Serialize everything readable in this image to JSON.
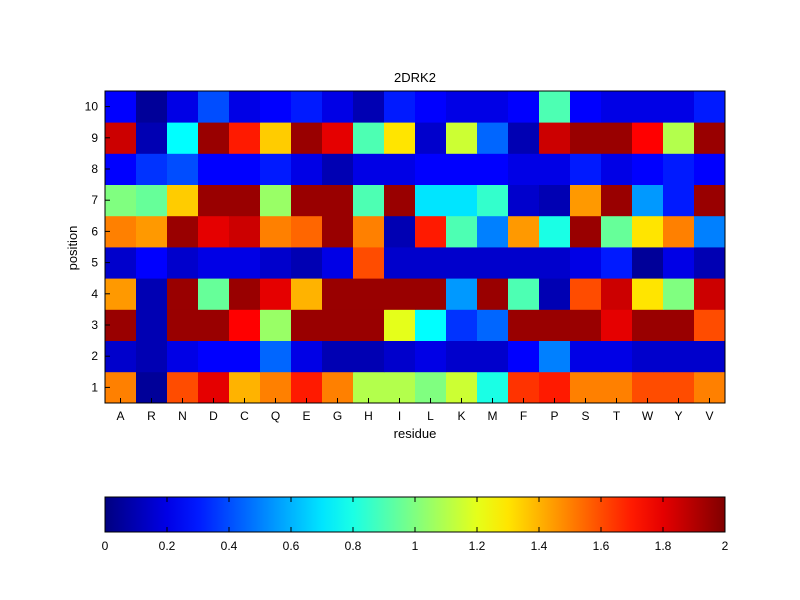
{
  "chart_data": {
    "type": "heatmap",
    "title": "2DRK2",
    "xlabel": "residue",
    "ylabel": "position",
    "x_categories": [
      "A",
      "R",
      "N",
      "D",
      "C",
      "Q",
      "E",
      "G",
      "H",
      "I",
      "L",
      "K",
      "M",
      "F",
      "P",
      "S",
      "T",
      "W",
      "Y",
      "V"
    ],
    "y_categories": [
      "1",
      "2",
      "3",
      "4",
      "5",
      "6",
      "7",
      "8",
      "9",
      "10"
    ],
    "values": [
      [
        1.5,
        0.05,
        1.6,
        1.8,
        1.4,
        1.5,
        1.7,
        1.5,
        1.1,
        1.1,
        1.0,
        1.15,
        0.8,
        1.65,
        1.7,
        1.5,
        1.5,
        1.6,
        1.6,
        1.5
      ],
      [
        0.15,
        0.1,
        0.2,
        0.25,
        0.25,
        0.45,
        0.2,
        0.1,
        0.1,
        0.15,
        0.2,
        0.15,
        0.15,
        0.25,
        0.5,
        0.2,
        0.2,
        0.15,
        0.15,
        0.15
      ],
      [
        1.95,
        0.1,
        1.95,
        1.95,
        1.75,
        1.05,
        1.95,
        1.95,
        1.95,
        1.2,
        0.75,
        0.35,
        0.45,
        1.95,
        1.95,
        1.95,
        1.8,
        1.95,
        1.95,
        1.6
      ],
      [
        1.45,
        0.1,
        1.95,
        0.95,
        1.95,
        1.8,
        1.4,
        1.95,
        1.95,
        1.95,
        1.95,
        0.55,
        1.95,
        0.9,
        0.1,
        1.6,
        1.85,
        1.3,
        1.0,
        1.85
      ],
      [
        0.15,
        0.25,
        0.15,
        0.2,
        0.2,
        0.15,
        0.1,
        0.2,
        1.6,
        0.15,
        0.15,
        0.15,
        0.15,
        0.15,
        0.15,
        0.2,
        0.3,
        0.05,
        0.2,
        0.1
      ],
      [
        1.5,
        1.45,
        1.95,
        1.8,
        1.85,
        1.5,
        1.55,
        1.95,
        1.5,
        0.1,
        1.7,
        0.9,
        0.5,
        1.45,
        0.8,
        1.95,
        0.95,
        1.3,
        1.5,
        0.5
      ],
      [
        1.0,
        0.95,
        1.35,
        1.95,
        1.95,
        1.05,
        1.95,
        1.95,
        0.9,
        1.95,
        0.7,
        0.7,
        0.85,
        0.15,
        0.1,
        1.45,
        1.95,
        0.55,
        0.3,
        1.95
      ],
      [
        0.25,
        0.35,
        0.4,
        0.25,
        0.25,
        0.3,
        0.2,
        0.1,
        0.2,
        0.2,
        0.25,
        0.25,
        0.25,
        0.2,
        0.2,
        0.3,
        0.2,
        0.25,
        0.3,
        0.25
      ],
      [
        1.85,
        0.1,
        0.75,
        1.95,
        1.7,
        1.35,
        1.95,
        1.8,
        0.9,
        1.3,
        0.15,
        1.15,
        0.45,
        0.1,
        1.85,
        1.95,
        1.95,
        1.75,
        1.1,
        1.95
      ],
      [
        0.25,
        0.05,
        0.2,
        0.4,
        0.2,
        0.25,
        0.3,
        0.2,
        0.1,
        0.3,
        0.25,
        0.2,
        0.2,
        0.25,
        0.9,
        0.25,
        0.2,
        0.2,
        0.2,
        0.3
      ]
    ],
    "clim": [
      0,
      2
    ],
    "colormap": "jet",
    "colorbar": {
      "placement": "bottom",
      "ticks": [
        0,
        0.2,
        0.4,
        0.6,
        0.8,
        1,
        1.2,
        1.4,
        1.6,
        1.8,
        2
      ],
      "tick_labels": [
        "0",
        "0.2",
        "0.4",
        "0.6",
        "0.8",
        "1",
        "1.2",
        "1.4",
        "1.6",
        "1.8",
        "2"
      ]
    },
    "grid": false
  }
}
